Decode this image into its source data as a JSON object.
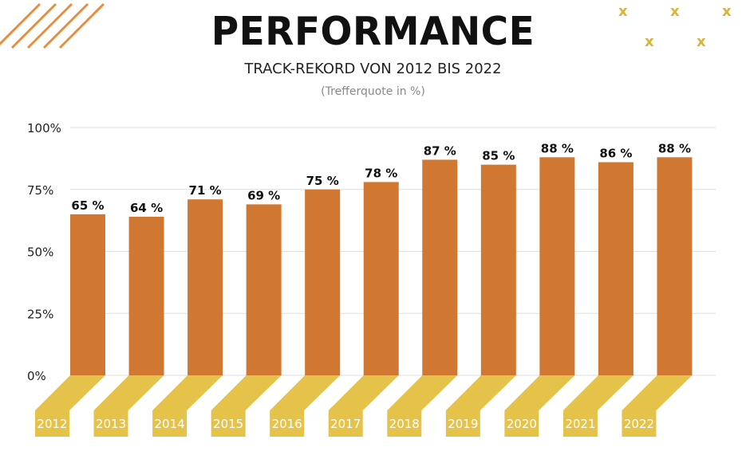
{
  "title": "PERFORMANCE",
  "subtitle": "TRACK-REKORD VON 2012 BIS 2022",
  "note": "(Trefferquote in %)",
  "decor": {
    "cross_glyph": "x"
  },
  "colors": {
    "bar": "#d07832",
    "label_band": "#e5c24a",
    "grid": "#dddddd",
    "stripes": "#e08f45",
    "axis_text": "#222222"
  },
  "chart_data": {
    "type": "bar",
    "categories": [
      "2012",
      "2013",
      "2014",
      "2015",
      "2016",
      "2017",
      "2018",
      "2019",
      "2020",
      "2021",
      "2022"
    ],
    "values": [
      65,
      64,
      71,
      69,
      75,
      78,
      87,
      85,
      88,
      86,
      88
    ],
    "data_labels": [
      "65 %",
      "64 %",
      "71 %",
      "69 %",
      "75 %",
      "78 %",
      "87 %",
      "85 %",
      "88 %",
      "86 %",
      "88 %"
    ],
    "yticks": [
      0,
      25,
      50,
      75,
      100
    ],
    "ytick_labels": [
      "0%",
      "25%",
      "50%",
      "75%",
      "100%"
    ],
    "ylim": [
      0,
      100
    ],
    "grid": true
  }
}
